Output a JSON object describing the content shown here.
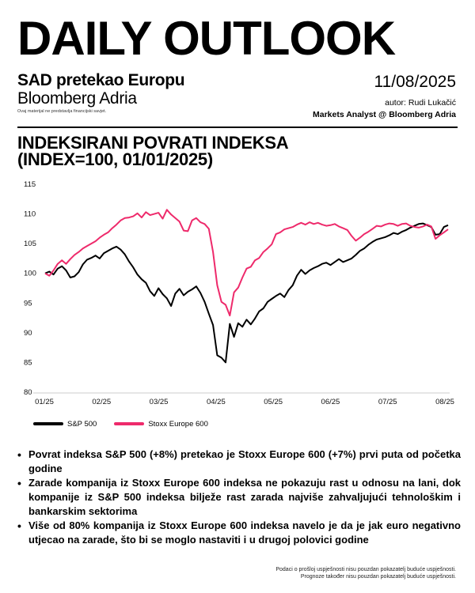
{
  "header": {
    "title": "DAILY OUTLOOK",
    "subtitle": "SAD pretekao Europu",
    "publisher": "Bloomberg Adria",
    "disclaimer": "Ovaj materijal ne predstavlja financijski savjet.",
    "date": "11/08/2025",
    "author": "autor: Rudi Lukačić",
    "author_role": "Markets Analyst @ Bloomberg Adria"
  },
  "chart_title": {
    "line1": "INDEKSIRANI POVRATI INDEKSA",
    "line2": "(INDEX=100, 01/01/2025)"
  },
  "chart_data": {
    "type": "line",
    "title": "INDEKSIRANI POVRATI INDEKSA (INDEX=100, 01/01/2025)",
    "x_ticks": [
      "01/25",
      "02/25",
      "03/25",
      "04/25",
      "05/25",
      "06/25",
      "07/25",
      "08/25"
    ],
    "y_ticks": [
      80,
      85,
      90,
      95,
      100,
      105,
      110,
      115
    ],
    "ylim": [
      80,
      115
    ],
    "grid": false,
    "legend_position": "bottom-left",
    "series": [
      {
        "name": "S&P 500",
        "color": "#000000",
        "points": [
          [
            0,
            100
          ],
          [
            1,
            100.3
          ],
          [
            2,
            99.8
          ],
          [
            3,
            100.8
          ],
          [
            4,
            101.2
          ],
          [
            5,
            100.5
          ],
          [
            6,
            99.3
          ],
          [
            7,
            99.5
          ],
          [
            8,
            100.2
          ],
          [
            9,
            101.5
          ],
          [
            10,
            102.3
          ],
          [
            11,
            102.6
          ],
          [
            12,
            103.0
          ],
          [
            13,
            102.5
          ],
          [
            14,
            103.4
          ],
          [
            15,
            103.8
          ],
          [
            16,
            104.2
          ],
          [
            17,
            104.5
          ],
          [
            18,
            104.0
          ],
          [
            19,
            103.2
          ],
          [
            20,
            102.0
          ],
          [
            21,
            101.0
          ],
          [
            22,
            99.8
          ],
          [
            23,
            99.0
          ],
          [
            24,
            98.4
          ],
          [
            25,
            97.0
          ],
          [
            26,
            96.2
          ],
          [
            27,
            97.5
          ],
          [
            28,
            96.5
          ],
          [
            29,
            95.8
          ],
          [
            30,
            94.5
          ],
          [
            31,
            96.6
          ],
          [
            32,
            97.4
          ],
          [
            33,
            96.3
          ],
          [
            34,
            96.9
          ],
          [
            35,
            97.3
          ],
          [
            36,
            97.8
          ],
          [
            37,
            96.7
          ],
          [
            38,
            95.2
          ],
          [
            39,
            93.2
          ],
          [
            40,
            91.3
          ],
          [
            41,
            86.2
          ],
          [
            42,
            85.8
          ],
          [
            43,
            85.0
          ],
          [
            44,
            91.5
          ],
          [
            45,
            89.3
          ],
          [
            46,
            91.6
          ],
          [
            47,
            91.0
          ],
          [
            48,
            92.2
          ],
          [
            49,
            91.4
          ],
          [
            50,
            92.4
          ],
          [
            51,
            93.6
          ],
          [
            52,
            94.1
          ],
          [
            53,
            95.2
          ],
          [
            54,
            95.7
          ],
          [
            55,
            96.2
          ],
          [
            56,
            96.6
          ],
          [
            57,
            96.0
          ],
          [
            58,
            97.2
          ],
          [
            59,
            98.0
          ],
          [
            60,
            99.6
          ],
          [
            61,
            100.6
          ],
          [
            62,
            99.9
          ],
          [
            63,
            100.5
          ],
          [
            64,
            100.9
          ],
          [
            65,
            101.2
          ],
          [
            66,
            101.6
          ],
          [
            67,
            101.8
          ],
          [
            68,
            101.4
          ],
          [
            69,
            101.9
          ],
          [
            70,
            102.4
          ],
          [
            71,
            101.9
          ],
          [
            72,
            102.2
          ],
          [
            73,
            102.5
          ],
          [
            74,
            103.1
          ],
          [
            75,
            103.8
          ],
          [
            76,
            104.2
          ],
          [
            77,
            104.8
          ],
          [
            78,
            105.3
          ],
          [
            79,
            105.7
          ],
          [
            80,
            105.9
          ],
          [
            81,
            106.1
          ],
          [
            82,
            106.4
          ],
          [
            83,
            106.8
          ],
          [
            84,
            106.6
          ],
          [
            85,
            107.0
          ],
          [
            86,
            107.3
          ],
          [
            87,
            107.7
          ],
          [
            88,
            108.0
          ],
          [
            89,
            108.3
          ],
          [
            90,
            108.4
          ],
          [
            91,
            108.1
          ],
          [
            92,
            107.8
          ],
          [
            93,
            106.5
          ],
          [
            94,
            106.6
          ],
          [
            95,
            107.8
          ],
          [
            96,
            108.1
          ]
        ]
      },
      {
        "name": "Stoxx Europe 600",
        "color": "#ee2a6b",
        "points": [
          [
            0,
            100
          ],
          [
            1,
            99.6
          ],
          [
            2,
            100.5
          ],
          [
            3,
            101.6
          ],
          [
            4,
            102.2
          ],
          [
            5,
            101.6
          ],
          [
            6,
            102.4
          ],
          [
            7,
            103.1
          ],
          [
            8,
            103.6
          ],
          [
            9,
            104.2
          ],
          [
            10,
            104.6
          ],
          [
            11,
            105.0
          ],
          [
            12,
            105.4
          ],
          [
            13,
            106.0
          ],
          [
            14,
            106.5
          ],
          [
            15,
            106.9
          ],
          [
            16,
            107.6
          ],
          [
            17,
            108.2
          ],
          [
            18,
            108.9
          ],
          [
            19,
            109.3
          ],
          [
            20,
            109.4
          ],
          [
            21,
            109.6
          ],
          [
            22,
            110.1
          ],
          [
            23,
            109.4
          ],
          [
            24,
            110.3
          ],
          [
            25,
            109.8
          ],
          [
            26,
            110.0
          ],
          [
            27,
            110.2
          ],
          [
            28,
            109.2
          ],
          [
            29,
            110.7
          ],
          [
            30,
            109.9
          ],
          [
            31,
            109.3
          ],
          [
            32,
            108.7
          ],
          [
            33,
            107.2
          ],
          [
            34,
            107.1
          ],
          [
            35,
            108.9
          ],
          [
            36,
            109.3
          ],
          [
            37,
            108.6
          ],
          [
            38,
            108.3
          ],
          [
            39,
            107.5
          ],
          [
            40,
            103.6
          ],
          [
            41,
            98.0
          ],
          [
            42,
            95.2
          ],
          [
            43,
            94.7
          ],
          [
            44,
            92.9
          ],
          [
            45,
            96.8
          ],
          [
            46,
            97.6
          ],
          [
            47,
            99.3
          ],
          [
            48,
            100.8
          ],
          [
            49,
            101.1
          ],
          [
            50,
            102.2
          ],
          [
            51,
            102.6
          ],
          [
            52,
            103.6
          ],
          [
            53,
            104.2
          ],
          [
            54,
            104.9
          ],
          [
            55,
            106.6
          ],
          [
            56,
            106.9
          ],
          [
            57,
            107.4
          ],
          [
            58,
            107.6
          ],
          [
            59,
            107.8
          ],
          [
            60,
            108.2
          ],
          [
            61,
            108.5
          ],
          [
            62,
            108.2
          ],
          [
            63,
            108.6
          ],
          [
            64,
            108.3
          ],
          [
            65,
            108.5
          ],
          [
            66,
            108.2
          ],
          [
            67,
            108.0
          ],
          [
            68,
            108.1
          ],
          [
            69,
            108.3
          ],
          [
            70,
            107.9
          ],
          [
            71,
            107.6
          ],
          [
            72,
            107.3
          ],
          [
            73,
            106.3
          ],
          [
            74,
            105.5
          ],
          [
            75,
            106.0
          ],
          [
            76,
            106.6
          ],
          [
            77,
            107.0
          ],
          [
            78,
            107.5
          ],
          [
            79,
            108.0
          ],
          [
            80,
            107.9
          ],
          [
            81,
            108.2
          ],
          [
            82,
            108.4
          ],
          [
            83,
            108.3
          ],
          [
            84,
            108.0
          ],
          [
            85,
            108.3
          ],
          [
            86,
            108.4
          ],
          [
            87,
            108.0
          ],
          [
            88,
            107.8
          ],
          [
            89,
            107.7
          ],
          [
            90,
            107.9
          ],
          [
            91,
            108.2
          ],
          [
            92,
            107.9
          ],
          [
            93,
            105.8
          ],
          [
            94,
            106.4
          ],
          [
            95,
            106.9
          ],
          [
            96,
            107.4
          ]
        ]
      }
    ]
  },
  "bullets": [
    "Povrat indeksa S&P 500 (+8%) pretekao je Stoxx Europe 600 (+7%) prvi puta od početka godine",
    "Zarade kompanija iz Stoxx Europe 600 indeksa ne pokazuju rast u odnosu na lani, dok kompanije iz S&P 500 indeksa bilježe rast zarada najviše zahvaljujući tehnološkim i bankarskim sektorima",
    "Više od 80% kompanija iz Stoxx Europe 600 indeksa navelo je da je jak euro negativno utjecao na zarade, što bi se moglo nastaviti i u drugoj polovici godine"
  ],
  "footer": {
    "line1": "Podaci o prošlој uspješnosti nisu pouzdan pokazatelj buduće uspješnosti.",
    "line2": "Prognoze također nisu pouzdan pokazatelj buduće uspješnosti."
  }
}
